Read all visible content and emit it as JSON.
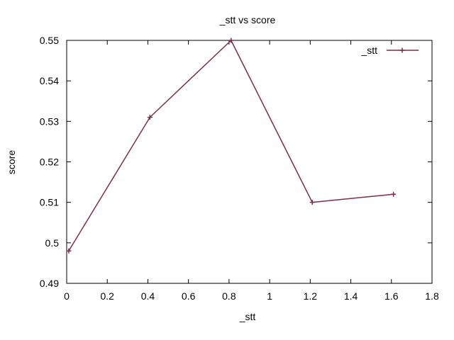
{
  "chart_data": {
    "type": "line",
    "title": "_stt vs score",
    "xlabel": "_stt",
    "ylabel": "score",
    "xlim": [
      0,
      1.8
    ],
    "ylim": [
      0.49,
      0.55
    ],
    "x_ticks": [
      "0",
      "0.2",
      "0.4",
      "0.6",
      "0.8",
      "1",
      "1.2",
      "1.4",
      "1.6",
      "1.8"
    ],
    "y_ticks": [
      "0.49",
      "0.5",
      "0.51",
      "0.52",
      "0.53",
      "0.54",
      "0.55"
    ],
    "grid": false,
    "legend_position": "top-right",
    "series": [
      {
        "name": "_stt",
        "color": "#7b2d4e",
        "marker": "plus",
        "x": [
          0.01,
          0.41,
          0.81,
          1.21,
          1.61
        ],
        "y": [
          0.498,
          0.531,
          0.55,
          0.51,
          0.512
        ]
      }
    ]
  }
}
